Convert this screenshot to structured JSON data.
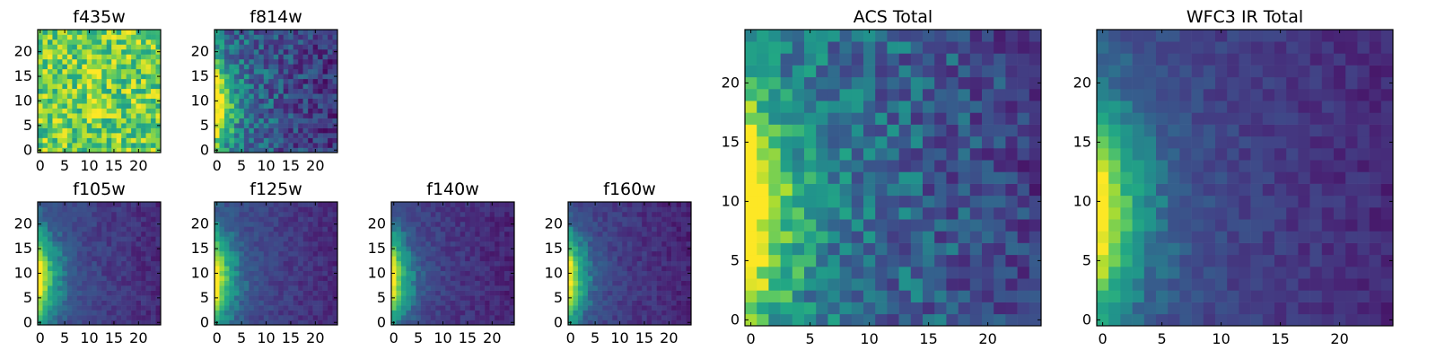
{
  "chart_data": [
    {
      "type": "heatmap",
      "title": "f435w",
      "grid": false,
      "colormap": "viridis",
      "x_range": [
        0,
        25
      ],
      "y_range": [
        0,
        25
      ],
      "xticks": [
        0,
        5,
        10,
        15,
        20
      ],
      "yticks": [
        0,
        5,
        10,
        15,
        20
      ],
      "pattern": "noisy-high-with-central-streak",
      "mean_level": 0.78,
      "noise": 0.22
    },
    {
      "type": "heatmap",
      "title": "f814w",
      "grid": false,
      "colormap": "viridis",
      "x_range": [
        0,
        25
      ],
      "y_range": [
        0,
        25
      ],
      "xticks": [
        0,
        5,
        10,
        15,
        20
      ],
      "yticks": [
        0,
        5,
        10,
        15,
        20
      ],
      "pattern": "left-edge-glow",
      "mean_level": 0.45,
      "noise": 0.18
    },
    {
      "type": "heatmap",
      "title": "f105w",
      "grid": false,
      "colormap": "viridis",
      "x_range": [
        0,
        25
      ],
      "y_range": [
        0,
        25
      ],
      "xticks": [
        0,
        5,
        10,
        15,
        20
      ],
      "yticks": [
        0,
        5,
        10,
        15,
        20
      ],
      "pattern": "left-edge-glow",
      "mean_level": 0.35,
      "noise": 0.07
    },
    {
      "type": "heatmap",
      "title": "f125w",
      "grid": false,
      "colormap": "viridis",
      "x_range": [
        0,
        25
      ],
      "y_range": [
        0,
        25
      ],
      "xticks": [
        0,
        5,
        10,
        15,
        20
      ],
      "yticks": [
        0,
        5,
        10,
        15,
        20
      ],
      "pattern": "left-edge-glow",
      "mean_level": 0.35,
      "noise": 0.07
    },
    {
      "type": "heatmap",
      "title": "f140w",
      "grid": false,
      "colormap": "viridis",
      "x_range": [
        0,
        25
      ],
      "y_range": [
        0,
        25
      ],
      "xticks": [
        0,
        5,
        10,
        15,
        20
      ],
      "yticks": [
        0,
        5,
        10,
        15,
        20
      ],
      "pattern": "left-edge-glow",
      "mean_level": 0.3,
      "noise": 0.07
    },
    {
      "type": "heatmap",
      "title": "f160w",
      "grid": false,
      "colormap": "viridis",
      "x_range": [
        0,
        25
      ],
      "y_range": [
        0,
        25
      ],
      "xticks": [
        0,
        5,
        10,
        15,
        20
      ],
      "yticks": [
        0,
        5,
        10,
        15,
        20
      ],
      "pattern": "left-edge-glow",
      "mean_level": 0.3,
      "noise": 0.07
    },
    {
      "type": "heatmap",
      "title": "ACS Total",
      "grid": false,
      "colormap": "viridis",
      "x_range": [
        0,
        25
      ],
      "y_range": [
        0,
        25
      ],
      "xticks": [
        0,
        5,
        10,
        15,
        20
      ],
      "yticks": [
        0,
        5,
        10,
        15,
        20
      ],
      "pattern": "left-edge-glow",
      "mean_level": 0.55,
      "noise": 0.16
    },
    {
      "type": "heatmap",
      "title": "WFC3 IR Total",
      "grid": false,
      "colormap": "viridis",
      "x_range": [
        0,
        25
      ],
      "y_range": [
        0,
        25
      ],
      "xticks": [
        0,
        5,
        10,
        15,
        20
      ],
      "yticks": [
        0,
        5,
        10,
        15,
        20
      ],
      "pattern": "left-edge-glow",
      "mean_level": 0.35,
      "noise": 0.07
    }
  ]
}
